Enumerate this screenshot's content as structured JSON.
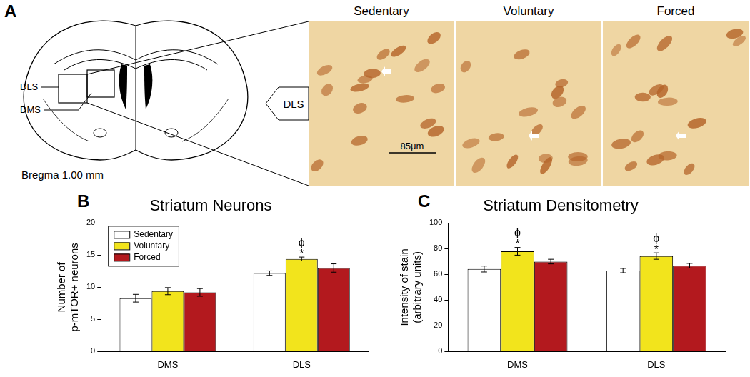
{
  "panel_labels": [
    "A",
    "B",
    "C"
  ],
  "panel_a": {
    "region_labels": {
      "dls": "DLS",
      "dms": "DMS"
    },
    "section_label": "Bregma 1.00 mm",
    "inset_label": "DLS",
    "image_titles": [
      "Sedentary",
      "Voluntary",
      "Forced"
    ],
    "scale_bar": "85μm"
  },
  "chart_data": [
    {
      "type": "bar",
      "title": "Striatum Neurons",
      "y_label": [
        "Number of",
        "p-mTOR+ neurons"
      ],
      "categories": [
        "DMS",
        "DLS"
      ],
      "series": [
        {
          "name": "Sedentary",
          "color": "#ffffff",
          "values": [
            8.3,
            12.2
          ],
          "errors": [
            0.6,
            0.35
          ]
        },
        {
          "name": "Voluntary",
          "color": "#f2e41c",
          "values": [
            9.4,
            14.4
          ],
          "errors": [
            0.55,
            0.3
          ]
        },
        {
          "name": "Forced",
          "color": "#b3191e",
          "values": [
            9.2,
            13.0
          ],
          "errors": [
            0.6,
            0.65
          ]
        }
      ],
      "annotations": [
        {
          "text": "*",
          "series": "Voluntary",
          "category": "DLS"
        },
        {
          "text": "ϕ",
          "series": "Voluntary",
          "category": "DLS"
        }
      ],
      "ylim": [
        0,
        20
      ],
      "yticks": [
        0,
        5,
        10,
        15,
        20
      ],
      "grid": false,
      "legend": "upper left"
    },
    {
      "type": "bar",
      "title": "Striatum Densitometry",
      "y_label": [
        "Intensity of stain",
        "(arbitrary units)"
      ],
      "categories": [
        "DMS",
        "DLS"
      ],
      "series": [
        {
          "name": "Sedentary",
          "color": "#ffffff",
          "values": [
            64.2,
            63.0
          ],
          "errors": [
            2.3,
            1.7
          ]
        },
        {
          "name": "Voluntary",
          "color": "#f2e41c",
          "values": [
            78.0,
            74.3
          ],
          "errors": [
            3.0,
            2.5
          ]
        },
        {
          "name": "Forced",
          "color": "#b3191e",
          "values": [
            70.0,
            66.8
          ],
          "errors": [
            1.8,
            1.8
          ]
        }
      ],
      "annotations": [
        {
          "text": "*",
          "series": "Voluntary",
          "category": "DMS"
        },
        {
          "text": "ϕ",
          "series": "Voluntary",
          "category": "DMS"
        },
        {
          "text": "*",
          "series": "Voluntary",
          "category": "DLS"
        },
        {
          "text": "ϕ",
          "series": "Voluntary",
          "category": "DLS"
        }
      ],
      "ylim": [
        0,
        100
      ],
      "yticks": [
        0,
        20,
        40,
        60,
        80,
        100
      ],
      "grid": false
    }
  ]
}
